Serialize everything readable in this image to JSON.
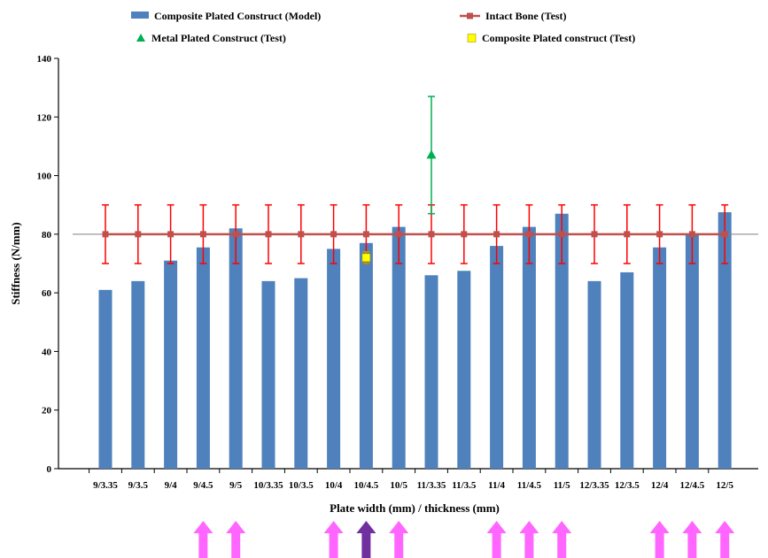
{
  "chart_data": {
    "type": "bar",
    "title": "",
    "xlabel": "Plate width (mm)  / thickness (mm)",
    "ylabel": "Stiffness (N/mm)",
    "ylim": [
      0,
      140
    ],
    "yticks": [
      0,
      20,
      40,
      60,
      80,
      100,
      120,
      140
    ],
    "grid": false,
    "legend_position": "top",
    "categories": [
      "9/3.35",
      "9/3.5",
      "9/4",
      "9/4.5",
      "9/5",
      "10/3.35",
      "10/3.5",
      "10/4",
      "10/4.5",
      "10/5",
      "11/3.35",
      "11/3.5",
      "11/4",
      "11/4.5",
      "11/5",
      "12/3.35",
      "12/3.5",
      "12/4",
      "12/4.5",
      "12/5"
    ],
    "series": [
      {
        "name": "Composite Plated Construct (Model)",
        "kind": "bar",
        "color": "#4f81bd",
        "values": [
          61,
          64,
          71,
          75.5,
          82,
          64,
          65,
          75,
          77,
          82.5,
          66,
          67.5,
          76,
          82.5,
          87,
          64,
          67,
          75.5,
          80,
          87.5
        ]
      },
      {
        "name": "Intact Bone (Test)",
        "kind": "line",
        "color": "#c0504d",
        "error_color": "#ff0000",
        "value": 80,
        "error": 10
      },
      {
        "name": "Metal Plated Construct (Test)",
        "kind": "point",
        "color": "#00b050",
        "category": "11/3.35",
        "value": 107,
        "error_low": 20,
        "error_high": 20
      },
      {
        "name": "Composite Plated construct (Test)",
        "kind": "point",
        "color": "#ffff00",
        "category": "10/4.5",
        "value": 72,
        "error_low": 2,
        "error_high": 2
      }
    ],
    "markers": {
      "shape": "up-arrow",
      "highlight_color": "#ff66ff",
      "selected_color": "#7030a0",
      "categories": [
        "9/4.5",
        "9/5",
        "10/4",
        "10/4.5",
        "10/5",
        "11/4",
        "11/4.5",
        "11/5",
        "12/4",
        "12/4.5",
        "12/5"
      ],
      "selected": "10/4.5"
    }
  }
}
